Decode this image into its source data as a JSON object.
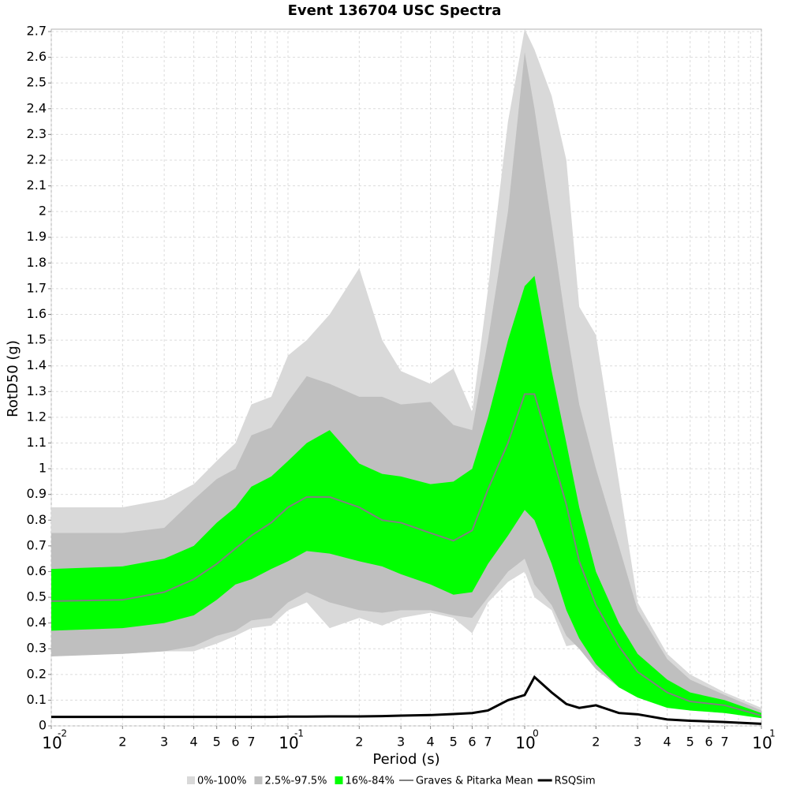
{
  "chart_data": {
    "type": "band-line",
    "title": "Event 136704 USC Spectra",
    "xlabel": "Period (s)",
    "ylabel": "RotD50 (g)",
    "xscale": "log",
    "grid": true,
    "x": [
      0.01,
      0.02,
      0.03,
      0.04,
      0.05,
      0.06,
      0.07,
      0.085,
      0.1,
      0.12,
      0.15,
      0.2,
      0.25,
      0.3,
      0.4,
      0.5,
      0.6,
      0.7,
      0.85,
      1.0,
      1.1,
      1.3,
      1.5,
      1.7,
      2.0,
      2.5,
      3.0,
      4.0,
      5.0,
      7.0,
      10
    ],
    "series": [
      {
        "name": "0%-100%",
        "color": "#d9d9d9",
        "kind": "band",
        "lower": [
          0.28,
          0.28,
          0.29,
          0.29,
          0.32,
          0.35,
          0.38,
          0.39,
          0.45,
          0.48,
          0.38,
          0.42,
          0.39,
          0.42,
          0.44,
          0.42,
          0.36,
          0.48,
          0.56,
          0.6,
          0.5,
          0.45,
          0.31,
          0.32,
          0.24,
          0.16,
          0.13,
          0.09,
          0.07,
          0.05,
          0.035
        ],
        "upper": [
          0.85,
          0.85,
          0.88,
          0.94,
          1.03,
          1.1,
          1.25,
          1.28,
          1.44,
          1.5,
          1.6,
          1.78,
          1.5,
          1.38,
          1.33,
          1.39,
          1.22,
          1.7,
          2.35,
          2.71,
          2.63,
          2.45,
          2.2,
          1.63,
          1.52,
          0.95,
          0.48,
          0.28,
          0.2,
          0.13,
          0.07
        ]
      },
      {
        "name": "2.5%-97.5%",
        "color": "#bfbfbf",
        "kind": "band",
        "lower": [
          0.27,
          0.28,
          0.29,
          0.31,
          0.35,
          0.37,
          0.41,
          0.42,
          0.48,
          0.52,
          0.48,
          0.45,
          0.44,
          0.45,
          0.45,
          0.43,
          0.42,
          0.5,
          0.6,
          0.65,
          0.55,
          0.47,
          0.35,
          0.3,
          0.22,
          0.15,
          0.12,
          0.08,
          0.06,
          0.05,
          0.035
        ],
        "upper": [
          0.75,
          0.75,
          0.77,
          0.88,
          0.96,
          1.0,
          1.13,
          1.16,
          1.26,
          1.36,
          1.33,
          1.28,
          1.28,
          1.25,
          1.26,
          1.17,
          1.15,
          1.5,
          2.0,
          2.62,
          2.4,
          1.95,
          1.55,
          1.25,
          1.0,
          0.7,
          0.45,
          0.26,
          0.18,
          0.12,
          0.06
        ]
      },
      {
        "name": "16%-84%",
        "color": "#00ff00",
        "kind": "band",
        "lower": [
          0.37,
          0.38,
          0.4,
          0.43,
          0.49,
          0.55,
          0.57,
          0.61,
          0.64,
          0.68,
          0.67,
          0.64,
          0.62,
          0.59,
          0.55,
          0.51,
          0.52,
          0.63,
          0.74,
          0.84,
          0.8,
          0.63,
          0.45,
          0.34,
          0.24,
          0.15,
          0.11,
          0.07,
          0.06,
          0.05,
          0.03
        ],
        "upper": [
          0.61,
          0.62,
          0.65,
          0.7,
          0.79,
          0.85,
          0.93,
          0.97,
          1.03,
          1.1,
          1.15,
          1.02,
          0.98,
          0.97,
          0.94,
          0.95,
          1.0,
          1.2,
          1.5,
          1.71,
          1.75,
          1.38,
          1.1,
          0.85,
          0.6,
          0.4,
          0.28,
          0.18,
          0.13,
          0.1,
          0.05
        ]
      },
      {
        "name": "Graves & Pitarka Mean",
        "color": "#808080",
        "kind": "line",
        "values": [
          0.485,
          0.49,
          0.52,
          0.57,
          0.63,
          0.69,
          0.74,
          0.79,
          0.85,
          0.89,
          0.89,
          0.85,
          0.8,
          0.79,
          0.75,
          0.72,
          0.76,
          0.92,
          1.1,
          1.29,
          1.29,
          1.06,
          0.86,
          0.64,
          0.47,
          0.31,
          0.21,
          0.13,
          0.095,
          0.08,
          0.04
        ]
      },
      {
        "name": "RSQSim",
        "color": "#000000",
        "kind": "line",
        "values": [
          0.035,
          0.035,
          0.035,
          0.035,
          0.035,
          0.035,
          0.035,
          0.035,
          0.036,
          0.036,
          0.037,
          0.037,
          0.038,
          0.04,
          0.042,
          0.046,
          0.05,
          0.06,
          0.1,
          0.12,
          0.19,
          0.13,
          0.085,
          0.07,
          0.08,
          0.05,
          0.045,
          0.025,
          0.02,
          0.015,
          0.008
        ]
      }
    ],
    "xlim": [
      0.01,
      10
    ],
    "ylim": [
      0,
      2.7
    ],
    "xticks": [
      {
        "value": 0.01,
        "label": "10",
        "superscript": "-2"
      },
      {
        "value": 0.02,
        "label": "2"
      },
      {
        "value": 0.03,
        "label": "3"
      },
      {
        "value": 0.04,
        "label": "4"
      },
      {
        "value": 0.05,
        "label": "5"
      },
      {
        "value": 0.06,
        "label": "6"
      },
      {
        "value": 0.07,
        "label": "7"
      },
      {
        "value": 0.1,
        "label": "10",
        "superscript": "-1"
      },
      {
        "value": 0.2,
        "label": "2"
      },
      {
        "value": 0.3,
        "label": "3"
      },
      {
        "value": 0.4,
        "label": "4"
      },
      {
        "value": 0.5,
        "label": "5"
      },
      {
        "value": 0.6,
        "label": "6"
      },
      {
        "value": 0.7,
        "label": "7"
      },
      {
        "value": 1,
        "label": "10",
        "superscript": "0"
      },
      {
        "value": 2,
        "label": "2"
      },
      {
        "value": 3,
        "label": "3"
      },
      {
        "value": 4,
        "label": "4"
      },
      {
        "value": 5,
        "label": "5"
      },
      {
        "value": 6,
        "label": "6"
      },
      {
        "value": 7,
        "label": "7"
      },
      {
        "value": 10,
        "label": "10",
        "superscript": "1"
      }
    ],
    "xminor": [
      0.08,
      0.09,
      0.8,
      0.9,
      8,
      9
    ],
    "yticks": [
      0,
      0.1,
      0.2,
      0.3,
      0.4,
      0.5,
      0.6,
      0.7,
      0.8,
      0.9,
      1,
      1.1,
      1.2,
      1.3,
      1.4,
      1.5,
      1.6,
      1.7,
      1.8,
      1.9,
      2,
      2.1,
      2.2,
      2.3,
      2.4,
      2.5,
      2.6,
      2.7
    ]
  }
}
